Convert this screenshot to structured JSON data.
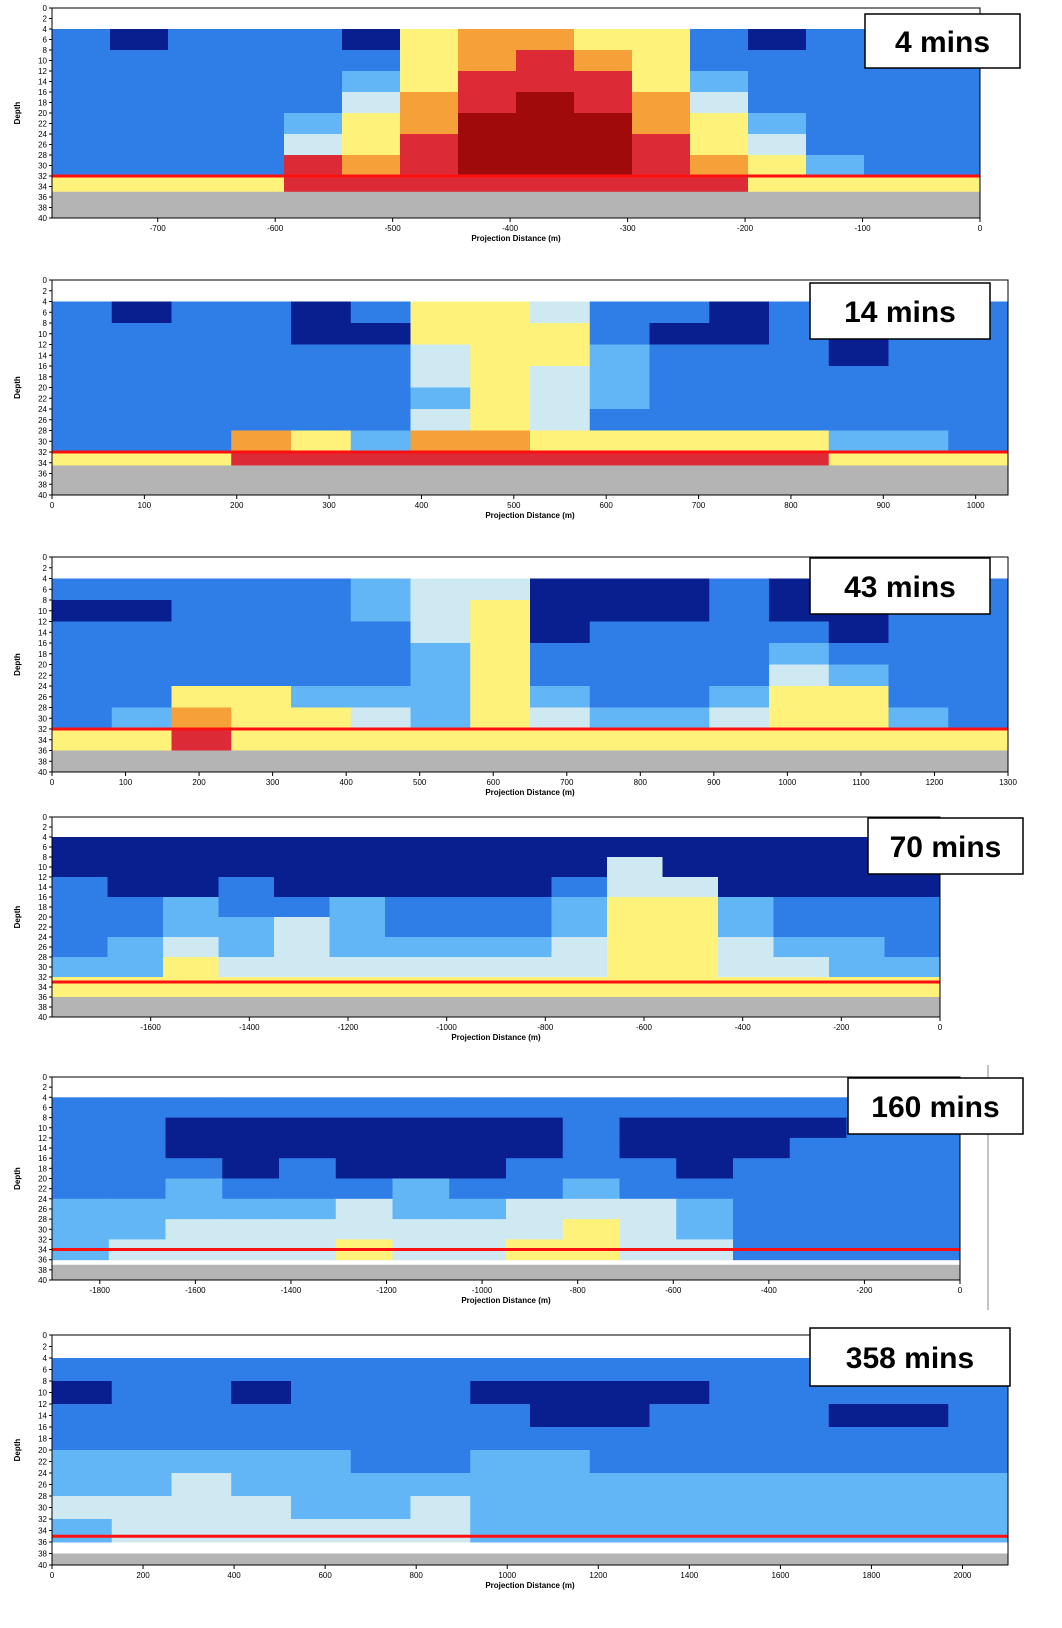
{
  "chart_data": [
    {
      "type": "heatmap",
      "label": "4 mins",
      "xlabel": "Projection Distance (m)",
      "ylabel": "Depth",
      "xlim": [
        -790,
        0
      ],
      "xticks": [
        -700,
        -600,
        -500,
        -400,
        -300,
        -200,
        -100,
        0
      ],
      "ylim": [
        40,
        0
      ],
      "yticks": [
        0,
        2,
        4,
        6,
        8,
        10,
        12,
        14,
        16,
        18,
        20,
        22,
        24,
        26,
        28,
        30,
        32,
        34,
        36,
        38,
        40
      ],
      "ybins": [
        4,
        8,
        12,
        16,
        20,
        24,
        28,
        32,
        36
      ],
      "colormap": [
        "#0a1f8f",
        "#2f7ee8",
        "#63b6f6",
        "#cfe9f2",
        "#fff27a",
        "#f6a03a",
        "#dc2a36",
        "#a00a0a"
      ],
      "bottom": 32,
      "bottom_color": "#ff1010",
      "seabed": 35,
      "seabed_color": "#b4b4b4",
      "z": [
        [
          1,
          0,
          1,
          1,
          1,
          0,
          4,
          5,
          5,
          4,
          4,
          1,
          0,
          1,
          1,
          1
        ],
        [
          1,
          1,
          1,
          1,
          1,
          1,
          4,
          5,
          6,
          5,
          4,
          1,
          1,
          1,
          1,
          1
        ],
        [
          1,
          1,
          1,
          1,
          1,
          2,
          4,
          6,
          6,
          6,
          4,
          2,
          1,
          1,
          1,
          1
        ],
        [
          1,
          1,
          1,
          1,
          1,
          3,
          5,
          6,
          7,
          6,
          5,
          3,
          1,
          1,
          1,
          1
        ],
        [
          1,
          1,
          1,
          1,
          2,
          4,
          5,
          7,
          7,
          7,
          5,
          4,
          2,
          1,
          1,
          1
        ],
        [
          1,
          1,
          1,
          1,
          3,
          4,
          6,
          7,
          7,
          7,
          6,
          4,
          3,
          1,
          1,
          1
        ],
        [
          1,
          1,
          1,
          1,
          6,
          5,
          6,
          7,
          7,
          7,
          6,
          5,
          4,
          2,
          1,
          1
        ],
        [
          4,
          4,
          4,
          4,
          6,
          6,
          6,
          6,
          6,
          6,
          6,
          6,
          4,
          4,
          4,
          4
        ]
      ]
    },
    {
      "type": "heatmap",
      "label": "14 mins",
      "xlabel": "Projection Distance (m)",
      "ylabel": "Depth",
      "xlim": [
        0,
        1035
      ],
      "xticks": [
        0,
        100,
        200,
        300,
        400,
        500,
        600,
        700,
        800,
        900,
        1000
      ],
      "ylim": [
        40,
        0
      ],
      "yticks": [
        0,
        2,
        4,
        6,
        8,
        10,
        12,
        14,
        16,
        18,
        20,
        22,
        24,
        26,
        28,
        30,
        32,
        34,
        36,
        38,
        40
      ],
      "ybins": [
        4,
        8,
        12,
        16,
        20,
        24,
        28,
        32,
        36
      ],
      "colormap": [
        "#0a1f8f",
        "#2f7ee8",
        "#63b6f6",
        "#cfe9f2",
        "#fff27a",
        "#f6a03a",
        "#dc2a36",
        "#a00a0a"
      ],
      "bottom": 32,
      "bottom_color": "#ff1010",
      "seabed": 34.5,
      "seabed_color": "#b4b4b4",
      "z": [
        [
          1,
          0,
          1,
          1,
          0,
          1,
          4,
          4,
          3,
          1,
          1,
          0,
          1,
          1,
          1,
          1
        ],
        [
          1,
          1,
          1,
          1,
          0,
          0,
          4,
          4,
          4,
          1,
          0,
          0,
          1,
          0,
          1,
          1
        ],
        [
          1,
          1,
          1,
          1,
          1,
          1,
          3,
          4,
          4,
          2,
          1,
          1,
          1,
          0,
          1,
          1
        ],
        [
          1,
          1,
          1,
          1,
          1,
          1,
          3,
          4,
          3,
          2,
          1,
          1,
          1,
          1,
          1,
          1
        ],
        [
          1,
          1,
          1,
          1,
          1,
          1,
          2,
          4,
          3,
          2,
          1,
          1,
          1,
          1,
          1,
          1
        ],
        [
          1,
          1,
          1,
          1,
          1,
          1,
          3,
          4,
          3,
          1,
          1,
          1,
          1,
          1,
          1,
          1
        ],
        [
          1,
          1,
          1,
          5,
          4,
          2,
          5,
          5,
          4,
          4,
          4,
          4,
          4,
          2,
          2,
          1
        ],
        [
          4,
          4,
          4,
          6,
          6,
          6,
          6,
          6,
          6,
          6,
          6,
          6,
          6,
          4,
          4,
          4
        ]
      ]
    },
    {
      "type": "heatmap",
      "label": "43 mins",
      "xlabel": "Projection Distance (m)",
      "ylabel": "Depth",
      "xlim": [
        0,
        1300
      ],
      "xticks": [
        0,
        100,
        200,
        300,
        400,
        500,
        600,
        700,
        800,
        900,
        1000,
        1100,
        1200,
        1300
      ],
      "ylim": [
        40,
        0
      ],
      "yticks": [
        0,
        2,
        4,
        6,
        8,
        10,
        12,
        14,
        16,
        18,
        20,
        22,
        24,
        26,
        28,
        30,
        32,
        34,
        36,
        38,
        40
      ],
      "ybins": [
        4,
        8,
        12,
        16,
        20,
        24,
        28,
        32,
        36
      ],
      "colormap": [
        "#0a1f8f",
        "#2f7ee8",
        "#63b6f6",
        "#cfe9f2",
        "#fff27a",
        "#f6a03a",
        "#dc2a36",
        "#a00a0a"
      ],
      "bottom": 32,
      "bottom_color": "#ff1010",
      "seabed": 36,
      "seabed_color": "#b4b4b4",
      "z": [
        [
          1,
          1,
          1,
          1,
          1,
          2,
          3,
          3,
          0,
          0,
          0,
          1,
          0,
          0,
          1,
          1
        ],
        [
          0,
          0,
          1,
          1,
          1,
          2,
          3,
          4,
          0,
          0,
          0,
          1,
          0,
          0,
          1,
          1
        ],
        [
          1,
          1,
          1,
          1,
          1,
          1,
          3,
          4,
          0,
          1,
          1,
          1,
          1,
          0,
          1,
          1
        ],
        [
          1,
          1,
          1,
          1,
          1,
          1,
          2,
          4,
          1,
          1,
          1,
          1,
          2,
          1,
          1,
          1
        ],
        [
          1,
          1,
          1,
          1,
          1,
          1,
          2,
          4,
          1,
          1,
          1,
          1,
          3,
          2,
          1,
          1
        ],
        [
          1,
          1,
          4,
          4,
          2,
          2,
          2,
          4,
          2,
          1,
          1,
          2,
          4,
          4,
          1,
          1
        ],
        [
          1,
          2,
          5,
          4,
          4,
          3,
          2,
          4,
          3,
          2,
          2,
          3,
          4,
          4,
          2,
          1
        ],
        [
          4,
          4,
          6,
          4,
          4,
          4,
          4,
          4,
          4,
          4,
          4,
          4,
          4,
          4,
          4,
          4
        ]
      ]
    },
    {
      "type": "heatmap",
      "label": "70 mins",
      "xlabel": "Projection Distance (m)",
      "ylabel": "Depth",
      "xlim": [
        -1800,
        0
      ],
      "xticks": [
        -1600,
        -1400,
        -1200,
        -1000,
        -800,
        -600,
        -400,
        -200,
        0
      ],
      "ylim": [
        40,
        0
      ],
      "yticks": [
        0,
        2,
        4,
        6,
        8,
        10,
        12,
        14,
        16,
        18,
        20,
        22,
        24,
        26,
        28,
        30,
        32,
        34,
        36,
        38,
        40
      ],
      "ybins": [
        4,
        8,
        12,
        16,
        20,
        24,
        28,
        32,
        36
      ],
      "colormap": [
        "#0a1f8f",
        "#2f7ee8",
        "#63b6f6",
        "#cfe9f2",
        "#fff27a",
        "#f6a03a",
        "#dc2a36",
        "#a00a0a"
      ],
      "bottom": 33,
      "bottom_color": "#ff1010",
      "seabed": 36,
      "seabed_color": "#b4b4b4",
      "z": [
        [
          0,
          0,
          0,
          0,
          0,
          0,
          0,
          0,
          0,
          0,
          0,
          0,
          0,
          0,
          0,
          0
        ],
        [
          0,
          0,
          0,
          0,
          0,
          0,
          0,
          0,
          0,
          0,
          3,
          0,
          0,
          0,
          0,
          0
        ],
        [
          1,
          0,
          0,
          1,
          0,
          0,
          0,
          0,
          0,
          1,
          3,
          3,
          0,
          0,
          0,
          0
        ],
        [
          1,
          1,
          2,
          1,
          1,
          2,
          1,
          1,
          1,
          2,
          4,
          4,
          2,
          1,
          1,
          1
        ],
        [
          1,
          1,
          2,
          2,
          3,
          2,
          1,
          1,
          1,
          2,
          4,
          4,
          2,
          1,
          1,
          1
        ],
        [
          1,
          2,
          3,
          2,
          3,
          2,
          2,
          2,
          2,
          3,
          4,
          4,
          3,
          2,
          2,
          1
        ],
        [
          2,
          2,
          4,
          3,
          3,
          3,
          3,
          3,
          3,
          3,
          4,
          4,
          3,
          3,
          2,
          2
        ],
        [
          4,
          4,
          4,
          4,
          4,
          4,
          4,
          4,
          4,
          4,
          4,
          4,
          4,
          4,
          4,
          4
        ]
      ]
    },
    {
      "type": "heatmap",
      "label": "160 mins",
      "xlabel": "Projection Distance (m)",
      "ylabel": "Depth",
      "xlim": [
        -1900,
        0
      ],
      "xticks": [
        -1800,
        -1600,
        -1400,
        -1200,
        -1000,
        -800,
        -600,
        -400,
        -200,
        0
      ],
      "ylim": [
        40,
        0
      ],
      "yticks": [
        0,
        2,
        4,
        6,
        8,
        10,
        12,
        14,
        16,
        18,
        20,
        22,
        24,
        26,
        28,
        30,
        32,
        34,
        36,
        38,
        40
      ],
      "ybins": [
        4,
        8,
        12,
        16,
        20,
        24,
        28,
        32,
        36
      ],
      "colormap": [
        "#0a1f8f",
        "#2f7ee8",
        "#63b6f6",
        "#cfe9f2",
        "#fff27a",
        "#f6a03a",
        "#dc2a36",
        "#a00a0a"
      ],
      "bottom": 34,
      "bottom_color": "#ff1010",
      "seabed": 37,
      "seabed_color": "#b4b4b4",
      "z": [
        [
          1,
          1,
          1,
          1,
          1,
          1,
          1,
          1,
          1,
          1,
          1,
          1,
          1,
          1,
          1,
          1
        ],
        [
          1,
          1,
          0,
          0,
          0,
          0,
          0,
          0,
          0,
          1,
          0,
          0,
          0,
          0,
          1,
          1
        ],
        [
          1,
          1,
          0,
          0,
          0,
          0,
          0,
          0,
          0,
          1,
          0,
          0,
          0,
          1,
          1,
          1
        ],
        [
          1,
          1,
          1,
          0,
          1,
          0,
          0,
          0,
          1,
          1,
          1,
          0,
          1,
          1,
          1,
          1
        ],
        [
          1,
          1,
          2,
          1,
          1,
          1,
          2,
          1,
          1,
          2,
          1,
          1,
          1,
          1,
          1,
          1
        ],
        [
          2,
          2,
          2,
          2,
          2,
          3,
          2,
          2,
          3,
          3,
          3,
          2,
          1,
          1,
          1,
          1
        ],
        [
          2,
          2,
          3,
          3,
          3,
          3,
          3,
          3,
          3,
          4,
          3,
          2,
          1,
          1,
          1,
          1
        ],
        [
          2,
          3,
          3,
          3,
          3,
          4,
          3,
          3,
          4,
          4,
          3,
          3,
          1,
          1,
          1,
          1
        ]
      ]
    },
    {
      "type": "heatmap",
      "label": "358 mins",
      "xlabel": "Projection Distance (m)",
      "ylabel": "Depth",
      "xlim": [
        0,
        2100
      ],
      "xticks": [
        0,
        200,
        400,
        600,
        800,
        1000,
        1200,
        1400,
        1600,
        1800,
        2000
      ],
      "ylim": [
        40,
        0
      ],
      "yticks": [
        0,
        2,
        4,
        6,
        8,
        10,
        12,
        14,
        16,
        18,
        20,
        22,
        24,
        26,
        28,
        30,
        32,
        34,
        36,
        38,
        40
      ],
      "ybins": [
        4,
        8,
        12,
        16,
        20,
        24,
        28,
        32,
        36
      ],
      "colormap": [
        "#0a1f8f",
        "#2f7ee8",
        "#63b6f6",
        "#cfe9f2",
        "#fff27a",
        "#f6a03a",
        "#dc2a36",
        "#a00a0a"
      ],
      "bottom": 35,
      "bottom_color": "#ff1010",
      "seabed": 38,
      "seabed_color": "#b4b4b4",
      "z": [
        [
          1,
          1,
          1,
          1,
          1,
          1,
          1,
          1,
          1,
          1,
          1,
          1,
          1,
          1,
          1,
          1
        ],
        [
          0,
          1,
          1,
          0,
          1,
          1,
          1,
          0,
          0,
          0,
          0,
          1,
          1,
          1,
          1,
          1
        ],
        [
          1,
          1,
          1,
          1,
          1,
          1,
          1,
          1,
          0,
          0,
          1,
          1,
          1,
          0,
          0,
          1
        ],
        [
          1,
          1,
          1,
          1,
          1,
          1,
          1,
          1,
          1,
          1,
          1,
          1,
          1,
          1,
          1,
          1
        ],
        [
          2,
          2,
          2,
          2,
          2,
          1,
          1,
          2,
          2,
          1,
          1,
          1,
          1,
          1,
          1,
          1
        ],
        [
          2,
          2,
          3,
          2,
          2,
          2,
          2,
          2,
          2,
          2,
          2,
          2,
          2,
          2,
          2,
          2
        ],
        [
          3,
          3,
          3,
          3,
          2,
          2,
          3,
          2,
          2,
          2,
          2,
          2,
          2,
          2,
          2,
          2
        ],
        [
          2,
          3,
          3,
          3,
          3,
          3,
          3,
          2,
          2,
          2,
          2,
          2,
          2,
          2,
          2,
          2
        ]
      ]
    }
  ]
}
